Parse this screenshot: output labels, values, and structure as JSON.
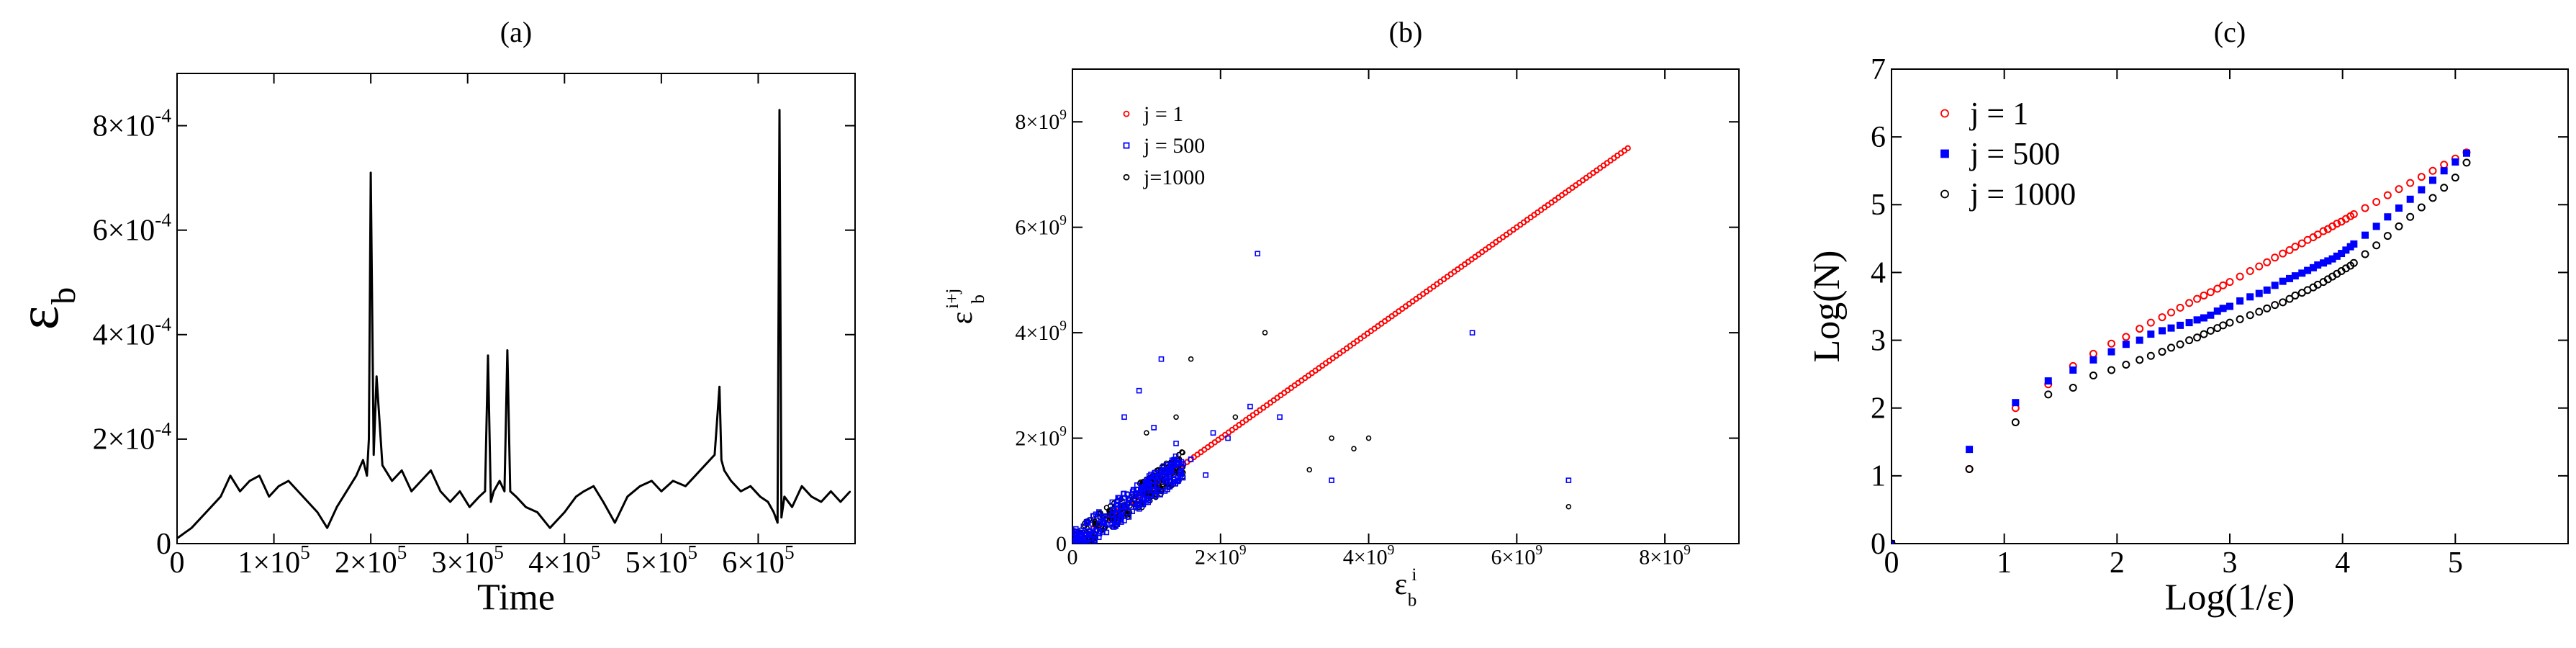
{
  "chart_data": [
    {
      "id": "a",
      "type": "line",
      "panel_label": "(a)",
      "xlabel": "Time",
      "ylabel": "ε",
      "ylabel_sub": "b",
      "xlim": [
        0,
        700000
      ],
      "ylim": [
        0,
        0.0009
      ],
      "xticks": [
        0,
        100000,
        200000,
        300000,
        400000,
        500000,
        600000
      ],
      "xtick_labels": [
        {
          "text": "0",
          "exp": ""
        },
        {
          "text": "1×10",
          "exp": "5"
        },
        {
          "text": "2×10",
          "exp": "5"
        },
        {
          "text": "3×10",
          "exp": "5"
        },
        {
          "text": "4×10",
          "exp": "5"
        },
        {
          "text": "5×10",
          "exp": "5"
        },
        {
          "text": "6×10",
          "exp": "5"
        }
      ],
      "yticks": [
        0,
        0.0002,
        0.0004,
        0.0006,
        0.0008
      ],
      "ytick_labels": [
        {
          "text": "0",
          "exp": ""
        },
        {
          "text": "2×10",
          "exp": "-4"
        },
        {
          "text": "4×10",
          "exp": "-4"
        },
        {
          "text": "6×10",
          "exp": "-4"
        },
        {
          "text": "8×10",
          "exp": "-4"
        }
      ],
      "grid": false,
      "color": "#000000",
      "series": [
        {
          "x": [
            0,
            15000,
            30000,
            45000,
            55000,
            65000,
            75000,
            85000,
            95000,
            105000,
            115000,
            125000,
            135000,
            145000,
            155000,
            165000,
            175000,
            185000,
            192000,
            196000,
            198000,
            200000,
            203000,
            206000,
            212000,
            222000,
            232000,
            242000,
            252000,
            262000,
            272000,
            282000,
            292000,
            302000,
            312000,
            318000,
            321000,
            324000,
            327000,
            333000,
            338000,
            341000,
            344000,
            350000,
            360000,
            372000,
            385000,
            400000,
            412000,
            420000,
            430000,
            440000,
            452000,
            465000,
            478000,
            490000,
            500000,
            512000,
            525000,
            535000,
            545000,
            555000,
            560000,
            562000,
            565000,
            572000,
            582000,
            592000,
            602000,
            610000,
            616000,
            620000,
            622000,
            624000,
            627000,
            635000,
            645000,
            655000,
            665000,
            675000,
            685000,
            695000
          ],
          "y": [
            1e-05,
            3e-05,
            6e-05,
            9e-05,
            0.00013,
            0.0001,
            0.00012,
            0.00013,
            9e-05,
            0.00011,
            0.00012,
            0.0001,
            8e-05,
            6e-05,
            3e-05,
            7e-05,
            0.0001,
            0.00013,
            0.00016,
            0.00013,
            0.0002,
            0.00071,
            0.00017,
            0.00032,
            0.00015,
            0.00012,
            0.00014,
            0.0001,
            0.00012,
            0.00014,
            0.0001,
            8e-05,
            0.0001,
            7e-05,
            9e-05,
            0.0001,
            0.00036,
            8e-05,
            0.0001,
            0.00012,
            0.0001,
            0.00037,
            0.0001,
            9e-05,
            7e-05,
            6e-05,
            3e-05,
            6e-05,
            9e-05,
            0.0001,
            0.00011,
            8e-05,
            4e-05,
            9e-05,
            0.00011,
            0.00012,
            0.0001,
            0.00012,
            0.00011,
            0.00013,
            0.00015,
            0.00017,
            0.0003,
            0.00016,
            0.00014,
            0.00012,
            0.0001,
            0.00011,
            9e-05,
            8e-05,
            6e-05,
            4e-05,
            0.00083,
            5e-05,
            9e-05,
            7e-05,
            0.00011,
            9e-05,
            8e-05,
            0.0001,
            8e-05,
            0.0001
          ]
        }
      ]
    },
    {
      "id": "b",
      "type": "scatter",
      "panel_label": "(b)",
      "xlabel": "ε",
      "xlabel_sub": "b",
      "xlabel_sup": "i",
      "ylabel": "ε",
      "ylabel_sub": "b",
      "ylabel_sup": "i+j",
      "xlim": [
        0,
        9000000000
      ],
      "ylim": [
        0,
        9000000000
      ],
      "xticks": [
        0,
        2000000000,
        4000000000,
        6000000000,
        8000000000
      ],
      "xtick_labels": [
        {
          "text": "0",
          "exp": ""
        },
        {
          "text": "2×10",
          "exp": "9"
        },
        {
          "text": "4×10",
          "exp": "9"
        },
        {
          "text": "6×10",
          "exp": "9"
        },
        {
          "text": "8×10",
          "exp": "9"
        }
      ],
      "yticks": [
        0,
        2000000000,
        4000000000,
        6000000000,
        8000000000
      ],
      "ytick_labels": [
        {
          "text": "0",
          "exp": ""
        },
        {
          "text": "2×10",
          "exp": "9"
        },
        {
          "text": "4×10",
          "exp": "9"
        },
        {
          "text": "6×10",
          "exp": "9"
        },
        {
          "text": "8×10",
          "exp": "9"
        }
      ],
      "grid": false,
      "legend_position": "top-left",
      "series": [
        {
          "name": "j = 1",
          "color": "#ff0000",
          "marker": "circle",
          "line_from": [
            0,
            0
          ],
          "line_to": [
            7500000000,
            7500000000
          ]
        },
        {
          "name": "j = 500",
          "color": "#0000ff",
          "marker": "square",
          "cluster_max": 1500000000,
          "x": [
            1200000000,
            2500000000,
            900000000,
            3500000000,
            5400000000,
            6700000000,
            1800000000,
            2100000000,
            1600000000,
            1900000000,
            700000000,
            1400000000,
            2400000000,
            1100000000,
            2800000000
          ],
          "y": [
            3500000000,
            5500000000,
            2900000000,
            1200000000,
            4000000000,
            1200000000,
            1300000000,
            2000000000,
            1600000000,
            2100000000,
            2400000000,
            1900000000,
            2600000000,
            2200000000,
            2400000000
          ]
        },
        {
          "name": "j=1000",
          "color": "#000000",
          "marker": "circle",
          "cluster_max": 1500000000,
          "x": [
            1600000000,
            2600000000,
            4000000000,
            3500000000,
            6700000000,
            1400000000,
            3800000000,
            2200000000,
            1000000000,
            3200000000
          ],
          "y": [
            3500000000,
            4000000000,
            2000000000,
            2000000000,
            700000000,
            2400000000,
            1800000000,
            2400000000,
            2100000000,
            1400000000
          ]
        }
      ]
    },
    {
      "id": "c",
      "type": "scatter",
      "panel_label": "(c)",
      "xlabel": "Log(1/ε)",
      "ylabel": "Log(N)",
      "xlim": [
        0,
        6
      ],
      "ylim": [
        0,
        7
      ],
      "xticks": [
        0,
        1,
        2,
        3,
        4,
        5
      ],
      "xtick_labels": [
        {
          "text": "0",
          "exp": ""
        },
        {
          "text": "1",
          "exp": ""
        },
        {
          "text": "2",
          "exp": ""
        },
        {
          "text": "3",
          "exp": ""
        },
        {
          "text": "4",
          "exp": ""
        },
        {
          "text": "5",
          "exp": ""
        }
      ],
      "yticks": [
        0,
        1,
        2,
        3,
        4,
        5,
        6,
        7
      ],
      "ytick_labels": [
        {
          "text": "0",
          "exp": ""
        },
        {
          "text": "1",
          "exp": ""
        },
        {
          "text": "2",
          "exp": ""
        },
        {
          "text": "3",
          "exp": ""
        },
        {
          "text": "4",
          "exp": ""
        },
        {
          "text": "5",
          "exp": ""
        },
        {
          "text": "6",
          "exp": ""
        },
        {
          "text": "7",
          "exp": ""
        }
      ],
      "grid": false,
      "legend_position": "top-left",
      "series": [
        {
          "name": "j = 1",
          "color": "#ff0000",
          "marker": "circle",
          "x": [
            0,
            0.69,
            1.1,
            1.39,
            1.61,
            1.79,
            1.95,
            2.08,
            2.2,
            2.3,
            2.4,
            2.48,
            2.56,
            2.64,
            2.71,
            2.77,
            2.83,
            2.89,
            2.94,
            3.0,
            3.09,
            3.18,
            3.26,
            3.33,
            3.4,
            3.47,
            3.53,
            3.58,
            3.64,
            3.69,
            3.74,
            3.78,
            3.83,
            3.87,
            3.91,
            3.95,
            3.99,
            4.03,
            4.07,
            4.1,
            4.2,
            4.3,
            4.4,
            4.5,
            4.6,
            4.7,
            4.8,
            4.9,
            5.0,
            5.1
          ],
          "y": [
            0,
            1.1,
            2.0,
            2.35,
            2.62,
            2.8,
            2.95,
            3.05,
            3.17,
            3.26,
            3.34,
            3.41,
            3.48,
            3.55,
            3.61,
            3.66,
            3.71,
            3.76,
            3.81,
            3.86,
            3.94,
            4.02,
            4.09,
            4.15,
            4.22,
            4.28,
            4.33,
            4.38,
            4.43,
            4.48,
            4.52,
            4.56,
            4.61,
            4.64,
            4.68,
            4.72,
            4.75,
            4.79,
            4.83,
            4.86,
            4.95,
            5.04,
            5.14,
            5.23,
            5.32,
            5.41,
            5.5,
            5.59,
            5.68,
            5.77
          ]
        },
        {
          "name": "j = 500",
          "color": "#0000ff",
          "marker": "square",
          "x": [
            0,
            0.69,
            1.1,
            1.39,
            1.61,
            1.79,
            1.95,
            2.08,
            2.2,
            2.3,
            2.4,
            2.48,
            2.56,
            2.64,
            2.71,
            2.77,
            2.83,
            2.89,
            2.94,
            3.0,
            3.09,
            3.18,
            3.26,
            3.33,
            3.4,
            3.47,
            3.53,
            3.58,
            3.64,
            3.69,
            3.74,
            3.78,
            3.83,
            3.87,
            3.91,
            3.95,
            3.99,
            4.03,
            4.07,
            4.1,
            4.2,
            4.3,
            4.4,
            4.5,
            4.6,
            4.7,
            4.8,
            4.9,
            5.0,
            5.1
          ],
          "y": [
            0,
            1.39,
            2.08,
            2.4,
            2.56,
            2.71,
            2.83,
            2.94,
            3.0,
            3.09,
            3.14,
            3.18,
            3.22,
            3.26,
            3.3,
            3.33,
            3.37,
            3.43,
            3.47,
            3.5,
            3.58,
            3.64,
            3.69,
            3.74,
            3.81,
            3.87,
            3.91,
            3.95,
            3.99,
            4.03,
            4.07,
            4.11,
            4.14,
            4.17,
            4.2,
            4.24,
            4.28,
            4.33,
            4.38,
            4.42,
            4.55,
            4.68,
            4.82,
            4.95,
            5.08,
            5.22,
            5.36,
            5.5,
            5.63,
            5.76
          ]
        },
        {
          "name": "j = 1000",
          "color": "#000000",
          "marker": "circle",
          "x": [
            0,
            0.69,
            1.1,
            1.39,
            1.61,
            1.79,
            1.95,
            2.08,
            2.2,
            2.3,
            2.4,
            2.48,
            2.56,
            2.64,
            2.71,
            2.77,
            2.83,
            2.89,
            2.94,
            3.0,
            3.09,
            3.18,
            3.26,
            3.33,
            3.4,
            3.47,
            3.53,
            3.58,
            3.64,
            3.69,
            3.74,
            3.78,
            3.83,
            3.87,
            3.91,
            3.95,
            3.99,
            4.03,
            4.07,
            4.1,
            4.2,
            4.3,
            4.4,
            4.5,
            4.6,
            4.7,
            4.8,
            4.9,
            5.0,
            5.1
          ],
          "y": [
            0,
            1.1,
            1.79,
            2.2,
            2.3,
            2.48,
            2.56,
            2.64,
            2.71,
            2.77,
            2.83,
            2.89,
            2.94,
            3.0,
            3.04,
            3.09,
            3.14,
            3.18,
            3.22,
            3.26,
            3.31,
            3.37,
            3.42,
            3.47,
            3.52,
            3.56,
            3.61,
            3.66,
            3.7,
            3.74,
            3.78,
            3.82,
            3.86,
            3.9,
            3.94,
            3.98,
            4.02,
            4.06,
            4.1,
            4.14,
            4.27,
            4.4,
            4.54,
            4.68,
            4.82,
            4.96,
            5.1,
            5.25,
            5.4,
            5.62
          ]
        }
      ]
    }
  ]
}
